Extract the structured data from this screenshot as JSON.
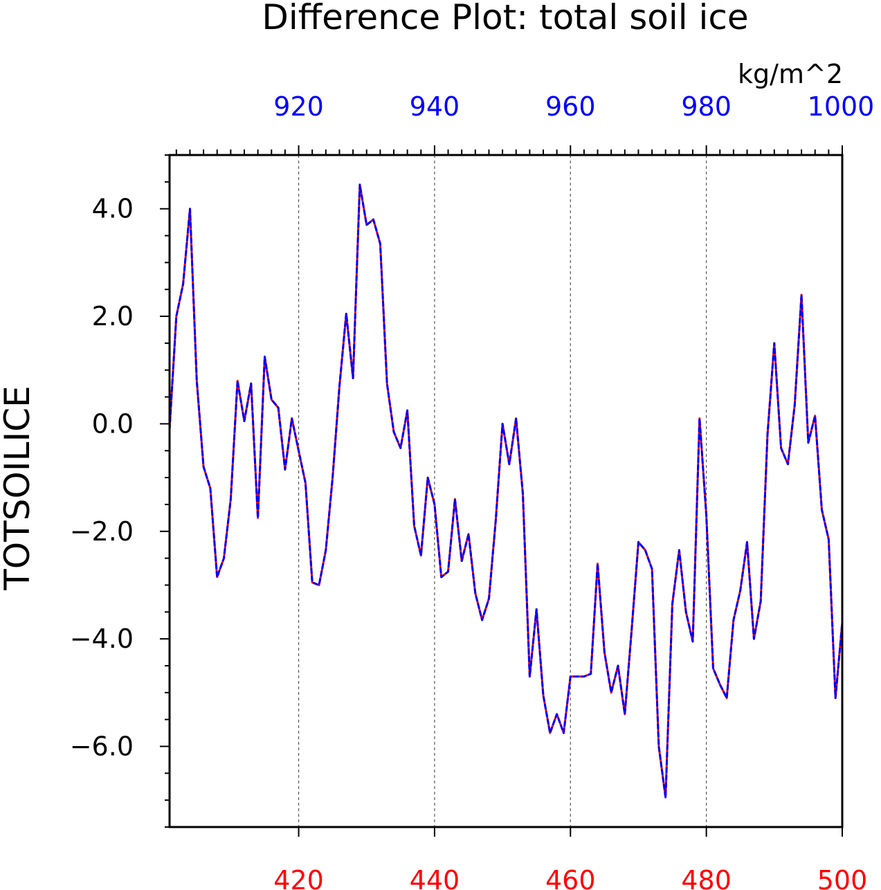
{
  "chart_data": {
    "type": "line",
    "title": "Difference Plot: total soil ice",
    "units_label": "kg/m^2",
    "ylabel": "TOTSOILICE",
    "xlim": [
      401,
      500
    ],
    "ylim": [
      -7.5,
      5.0
    ],
    "grid": "vertical dashed lines at labeled x ticks",
    "bottom_axis": {
      "color": "#ff0000",
      "ticks": [
        420,
        440,
        460,
        480,
        500
      ],
      "tick_labels": [
        "420",
        "440",
        "460",
        "480",
        "500"
      ]
    },
    "top_axis": {
      "color": "#0000ff",
      "ticks": [
        920,
        940,
        960,
        980,
        1000
      ],
      "tick_labels": [
        "920",
        "940",
        "960",
        "980",
        "1000"
      ],
      "offset_from_bottom": 500
    },
    "y_ticks": [
      4.0,
      2.0,
      0.0,
      -2.0,
      -4.0,
      -6.0
    ],
    "y_tick_labels": [
      "4.0",
      "2.0",
      "0.0",
      "−2.0",
      "−4.0",
      "−6.0"
    ],
    "series": [
      {
        "color": "#ff0000",
        "style": "solid",
        "x": [
          401,
          402,
          403,
          404,
          405,
          406,
          407,
          408,
          409,
          410,
          411,
          412,
          413,
          414,
          415,
          416,
          417,
          418,
          419,
          420,
          421,
          422,
          423,
          424,
          425,
          426,
          427,
          428,
          429,
          430,
          431,
          432,
          433,
          434,
          435,
          436,
          437,
          438,
          439,
          440,
          441,
          442,
          443,
          444,
          445,
          446,
          447,
          448,
          449,
          450,
          451,
          452,
          453,
          454,
          455,
          456,
          457,
          458,
          459,
          460,
          461,
          462,
          463,
          464,
          465,
          466,
          467,
          468,
          469,
          470,
          471,
          472,
          473,
          474,
          475,
          476,
          477,
          478,
          479,
          480,
          481,
          482,
          483,
          484,
          485,
          486,
          487,
          488,
          489,
          490,
          491,
          492,
          493,
          494,
          495,
          496,
          497,
          498,
          499,
          500
        ],
        "y": [
          -0.1,
          2.0,
          2.6,
          4.0,
          0.8,
          -0.8,
          -1.2,
          -2.85,
          -2.5,
          -1.4,
          0.8,
          0.05,
          0.75,
          -1.75,
          1.25,
          0.45,
          0.3,
          -0.85,
          0.1,
          -0.5,
          -1.1,
          -2.95,
          -3.0,
          -2.35,
          -1.0,
          0.7,
          2.05,
          0.85,
          4.45,
          3.7,
          3.8,
          3.35,
          0.75,
          -0.15,
          -0.45,
          0.25,
          -1.9,
          -2.45,
          -1.0,
          -1.5,
          -2.85,
          -2.75,
          -1.4,
          -2.55,
          -2.05,
          -3.15,
          -3.65,
          -3.25,
          -1.8,
          0.0,
          -0.75,
          0.1,
          -1.3,
          -4.7,
          -3.45,
          -5.05,
          -5.75,
          -5.4,
          -5.75,
          -4.7,
          -4.7,
          -4.7,
          -4.65,
          -2.6,
          -4.25,
          -5.0,
          -4.5,
          -5.4,
          -3.85,
          -2.2,
          -2.35,
          -2.7,
          -6.0,
          -6.95,
          -3.35,
          -2.35,
          -3.5,
          -4.05,
          0.1,
          -1.7,
          -4.55,
          -4.85,
          -5.1,
          -3.65,
          -3.1,
          -2.2,
          -4.0,
          -3.3,
          -0.2,
          1.5,
          -0.45,
          -0.75,
          0.35,
          2.4,
          -0.35,
          0.15,
          -1.6,
          -2.15,
          -5.1,
          -3.7
        ]
      },
      {
        "color": "#0000ff",
        "style": "dashed",
        "x": [
          401,
          402,
          403,
          404,
          405,
          406,
          407,
          408,
          409,
          410,
          411,
          412,
          413,
          414,
          415,
          416,
          417,
          418,
          419,
          420,
          421,
          422,
          423,
          424,
          425,
          426,
          427,
          428,
          429,
          430,
          431,
          432,
          433,
          434,
          435,
          436,
          437,
          438,
          439,
          440,
          441,
          442,
          443,
          444,
          445,
          446,
          447,
          448,
          449,
          450,
          451,
          452,
          453,
          454,
          455,
          456,
          457,
          458,
          459,
          460,
          461,
          462,
          463,
          464,
          465,
          466,
          467,
          468,
          469,
          470,
          471,
          472,
          473,
          474,
          475,
          476,
          477,
          478,
          479,
          480,
          481,
          482,
          483,
          484,
          485,
          486,
          487,
          488,
          489,
          490,
          491,
          492,
          493,
          494,
          495,
          496,
          497,
          498,
          499,
          500
        ],
        "y": [
          -0.1,
          2.0,
          2.6,
          4.0,
          0.8,
          -0.8,
          -1.2,
          -2.85,
          -2.5,
          -1.4,
          0.8,
          0.05,
          0.75,
          -1.75,
          1.25,
          0.45,
          0.3,
          -0.85,
          0.1,
          -0.5,
          -1.1,
          -2.95,
          -3.0,
          -2.35,
          -1.0,
          0.7,
          2.05,
          0.85,
          4.45,
          3.7,
          3.8,
          3.35,
          0.75,
          -0.15,
          -0.45,
          0.25,
          -1.9,
          -2.45,
          -1.0,
          -1.5,
          -2.85,
          -2.75,
          -1.4,
          -2.55,
          -2.05,
          -3.15,
          -3.65,
          -3.25,
          -1.8,
          0.0,
          -0.75,
          0.1,
          -1.3,
          -4.7,
          -3.45,
          -5.05,
          -5.75,
          -5.4,
          -5.75,
          -4.7,
          -4.7,
          -4.7,
          -4.65,
          -2.6,
          -4.25,
          -5.0,
          -4.5,
          -5.4,
          -3.85,
          -2.2,
          -2.35,
          -2.7,
          -6.0,
          -6.95,
          -3.35,
          -2.35,
          -3.5,
          -4.05,
          0.1,
          -1.7,
          -4.55,
          -4.85,
          -5.1,
          -3.65,
          -3.1,
          -2.2,
          -4.0,
          -3.3,
          -0.2,
          1.5,
          -0.45,
          -0.75,
          0.35,
          2.4,
          -0.35,
          0.15,
          -1.6,
          -2.15,
          -5.1,
          -3.7
        ]
      }
    ]
  }
}
